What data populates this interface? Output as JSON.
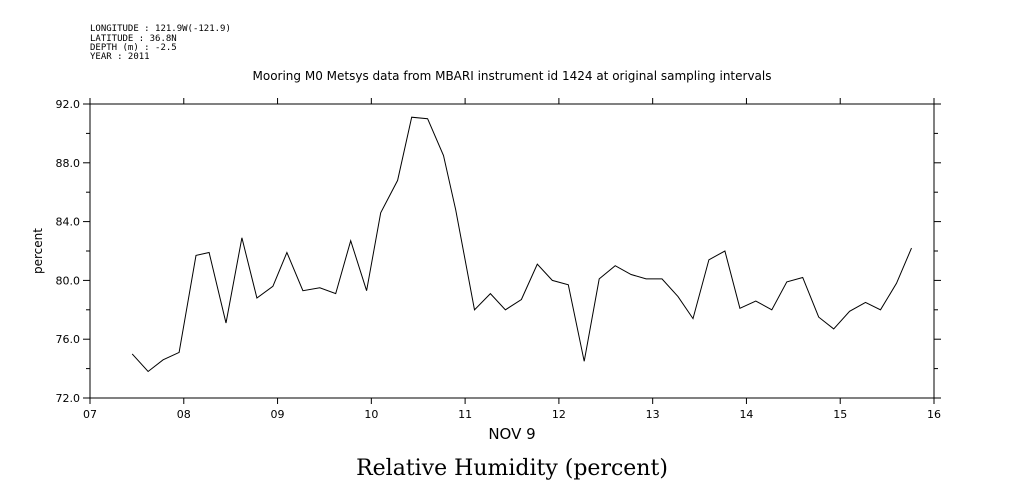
{
  "header": {
    "longitude": "LONGITUDE : 121.9W(-121.9)",
    "latitude": "LATITUDE : 36.8N",
    "depth": "DEPTH (m) : -2.5",
    "year": "YEAR : 2011"
  },
  "chart_data": {
    "type": "line",
    "title": "Mooring M0 Metsys data from MBARI instrument id 1424 at original sampling intervals",
    "xlabel": "NOV  9",
    "ylabel": "percent",
    "footer_title": "Relative Humidity (percent)",
    "xlim": [
      7,
      16
    ],
    "ylim": [
      72,
      92
    ],
    "x_ticks": [
      "07",
      "08",
      "09",
      "10",
      "11",
      "12",
      "13",
      "14",
      "15",
      "16"
    ],
    "y_ticks": [
      "72.0",
      "76.0",
      "80.0",
      "84.0",
      "88.0",
      "92.0"
    ],
    "series": [
      {
        "x": [
          7.45,
          7.62,
          7.78,
          7.95,
          8.13,
          8.27,
          8.45,
          8.62,
          8.78,
          8.95,
          9.1,
          9.27,
          9.45,
          9.62,
          9.78,
          9.95,
          10.1,
          10.28,
          10.43,
          10.6,
          10.77,
          10.9,
          11.1,
          11.27,
          11.43,
          11.6,
          11.77,
          11.93,
          12.1,
          12.27,
          12.43,
          12.6,
          12.77,
          12.93,
          13.1,
          13.27,
          13.43,
          13.6,
          13.77,
          13.93,
          14.1,
          14.27,
          14.43,
          14.6,
          14.77,
          14.93,
          15.1,
          15.27,
          15.43,
          15.6,
          15.76
        ],
        "y": [
          75.0,
          73.8,
          74.6,
          75.1,
          81.7,
          81.9,
          77.1,
          82.9,
          78.8,
          79.6,
          81.9,
          79.3,
          79.5,
          79.1,
          82.7,
          79.3,
          84.6,
          86.8,
          91.1,
          91.0,
          88.5,
          84.8,
          78.0,
          79.1,
          78.0,
          78.7,
          81.1,
          80.0,
          79.7,
          74.5,
          80.1,
          81.0,
          80.4,
          80.1,
          80.1,
          78.9,
          77.4,
          81.4,
          82.0,
          78.1,
          78.6,
          78.0,
          79.9,
          80.2,
          77.5,
          76.7,
          77.9,
          78.5,
          78.0,
          79.8,
          82.2
        ]
      }
    ]
  }
}
